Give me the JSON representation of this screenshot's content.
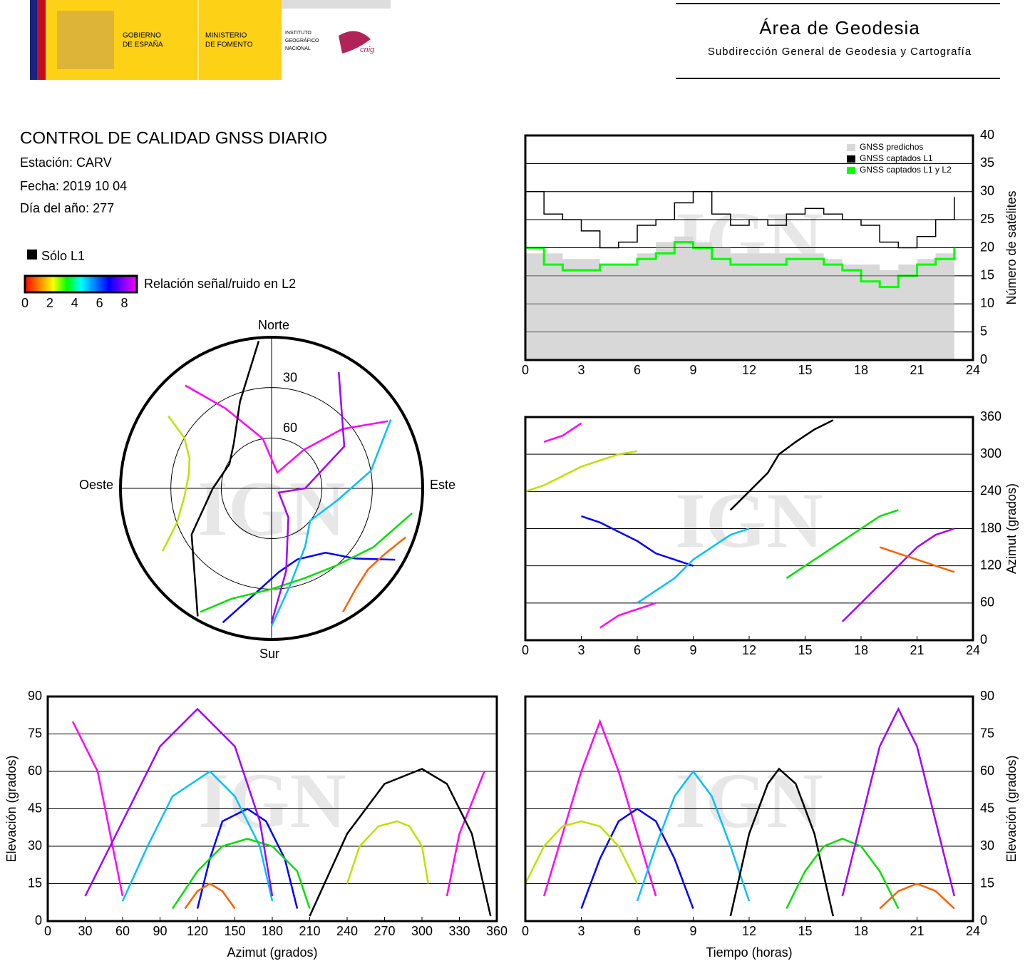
{
  "header": {
    "gov": [
      "GOBIERNO",
      "DE ESPAÑA"
    ],
    "ministry": [
      "MINISTERIO",
      "DE FOMENTO"
    ],
    "institute": [
      "INSTITUTO",
      "GEOGRÁFICO",
      "NACIONAL"
    ],
    "cnig": "cnig",
    "title": "Área de Geodesia",
    "subtitle": "Subdirección General de Geodesia y Cartografía"
  },
  "info": {
    "title": "CONTROL DE CALIDAD GNSS DIARIO",
    "station": "Estación: CARV",
    "date": "Fecha: 2019 10 04",
    "doy": "Día del año: 277"
  },
  "legend": {
    "l1_only": "Sólo L1",
    "l1_color": "#000000",
    "snr_label": "Relación señal/ruido en L2",
    "snr_lim": [
      0,
      9
    ],
    "snr_ticks": [
      0,
      2,
      4,
      6,
      8
    ],
    "colormap": [
      "#ff0000",
      "#ff8000",
      "#ffff00",
      "#00ff00",
      "#00ffff",
      "#0080ff",
      "#0000ff",
      "#8000ff",
      "#ff00ff"
    ]
  },
  "watermark": "IGN",
  "tracks": [
    {
      "color": "#ff00ff",
      "time": [
        1,
        2,
        3,
        4,
        5,
        6,
        7
      ],
      "azimuth": [
        320,
        330,
        350,
        20,
        40,
        50,
        60
      ],
      "elevation": [
        10,
        35,
        60,
        80,
        60,
        35,
        10
      ]
    },
    {
      "color": "#0000ff",
      "time": [
        3,
        4,
        5,
        6,
        7,
        8,
        9
      ],
      "azimuth": [
        200,
        190,
        175,
        160,
        140,
        130,
        120
      ],
      "elevation": [
        5,
        25,
        40,
        45,
        40,
        25,
        5
      ]
    },
    {
      "color": "#00c0ff",
      "time": [
        6,
        7,
        8,
        9,
        10,
        11,
        12
      ],
      "azimuth": [
        60,
        80,
        100,
        130,
        150,
        170,
        180
      ],
      "elevation": [
        8,
        30,
        50,
        60,
        50,
        30,
        8
      ]
    },
    {
      "color": "#000000",
      "time": [
        11,
        12,
        13,
        13.6,
        14.5,
        15.5,
        16.5
      ],
      "azimuth": [
        210,
        240,
        270,
        300,
        320,
        340,
        355
      ],
      "elevation": [
        2,
        35,
        55,
        61,
        55,
        35,
        2
      ]
    },
    {
      "color": "#00e000",
      "time": [
        14,
        15,
        16,
        17,
        18,
        19,
        20
      ],
      "azimuth": [
        100,
        120,
        140,
        160,
        180,
        200,
        210
      ],
      "elevation": [
        5,
        20,
        30,
        33,
        30,
        20,
        5
      ]
    },
    {
      "color": "#a000ff",
      "time": [
        17,
        18,
        19,
        20,
        21,
        22,
        23
      ],
      "azimuth": [
        30,
        60,
        90,
        120,
        150,
        170,
        180
      ],
      "elevation": [
        10,
        40,
        70,
        85,
        70,
        40,
        10
      ]
    },
    {
      "color": "#c0e000",
      "time": [
        0,
        1,
        2,
        3,
        4,
        5,
        6
      ],
      "azimuth": [
        240,
        250,
        265,
        280,
        290,
        300,
        305
      ],
      "elevation": [
        15,
        30,
        38,
        40,
        38,
        30,
        15
      ]
    },
    {
      "color": "#ff6000",
      "time": [
        19,
        20,
        21,
        22,
        23
      ],
      "azimuth": [
        150,
        140,
        130,
        120,
        110
      ],
      "elevation": [
        5,
        12,
        15,
        12,
        5
      ]
    }
  ],
  "chart_data": [
    {
      "type": "step",
      "ylabel": "Número de satélites",
      "x": [
        0,
        1,
        2,
        3,
        4,
        5,
        6,
        7,
        8,
        9,
        10,
        11,
        12,
        13,
        14,
        15,
        16,
        17,
        18,
        19,
        20,
        21,
        22,
        23
      ],
      "xlim": [
        0,
        24
      ],
      "xticks": [
        0,
        3,
        6,
        9,
        12,
        15,
        18,
        21,
        24
      ],
      "ylim": [
        0,
        40
      ],
      "yticks": [
        0,
        5,
        10,
        15,
        20,
        25,
        30,
        35,
        40
      ],
      "grid": true,
      "legend": "upper right",
      "series": [
        {
          "name": "GNSS predichos",
          "color": "#d8d8d8",
          "values": [
            19,
            19,
            18,
            18,
            17,
            17,
            19,
            21,
            22,
            21,
            20,
            19,
            19,
            19,
            19,
            19,
            18,
            17,
            17,
            16,
            17,
            18,
            19,
            20
          ]
        },
        {
          "name": "GNSS captados L1",
          "color": "#000000",
          "values": [
            30,
            26,
            25,
            23,
            20,
            21,
            24,
            25,
            28,
            30,
            26,
            24,
            25,
            24,
            26,
            27,
            26,
            25,
            24,
            21,
            20,
            22,
            25,
            29
          ]
        },
        {
          "name": "GNSS captados L1 y L2",
          "color": "#00ff00",
          "values": [
            20,
            17,
            16,
            16,
            17,
            17,
            18,
            19,
            21,
            20,
            18,
            17,
            17,
            17,
            18,
            18,
            17,
            16,
            14,
            13,
            15,
            17,
            18,
            20
          ]
        }
      ]
    },
    {
      "type": "polar",
      "north": "Norte",
      "south": "Sur",
      "east": "Este",
      "west": "Oeste",
      "rlim": [
        90,
        0
      ],
      "rticks": [
        30,
        60
      ]
    },
    {
      "type": "azimuth-time",
      "ylabel": "Azimut (grados)",
      "xlim": [
        0,
        24
      ],
      "xticks": [
        0,
        3,
        6,
        9,
        12,
        15,
        18,
        21,
        24
      ],
      "ylim": [
        0,
        360
      ],
      "yticks": [
        0,
        60,
        120,
        180,
        240,
        300,
        360
      ],
      "grid": true
    },
    {
      "type": "elevation-azimuth",
      "xlabel": "Azimut (grados)",
      "ylabel": "Elevación (grados)",
      "xlim": [
        0,
        360
      ],
      "xticks": [
        0,
        30,
        60,
        90,
        120,
        150,
        180,
        210,
        240,
        270,
        300,
        330,
        360
      ],
      "ylim": [
        0,
        90
      ],
      "yticks": [
        0,
        15,
        30,
        45,
        60,
        75,
        90
      ],
      "grid": true
    },
    {
      "type": "elevation-time",
      "xlabel": "Tiempo (horas)",
      "ylabel": "Elevación (grados)",
      "xlim": [
        0,
        24
      ],
      "xticks": [
        0,
        3,
        6,
        9,
        12,
        15,
        18,
        21,
        24
      ],
      "ylim": [
        0,
        90
      ],
      "yticks": [
        0,
        15,
        30,
        45,
        60,
        75,
        90
      ],
      "grid": true
    }
  ]
}
